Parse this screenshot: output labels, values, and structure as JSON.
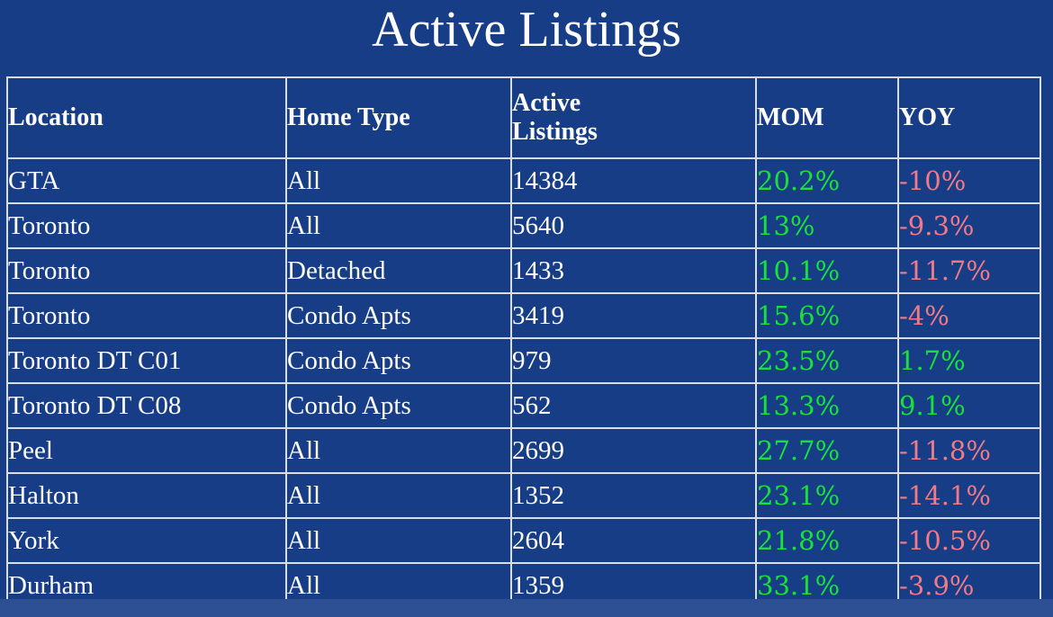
{
  "title": "Active Listings",
  "colors": {
    "background": "#173d87",
    "positive": "#18e23a",
    "negative": "#f07a86",
    "text": "#ffffff"
  },
  "headers": {
    "location": "Location",
    "home_type": "Home Type",
    "active_listings": "Active Listings",
    "mom": "MOM",
    "yoy": "YOY"
  },
  "rows": [
    {
      "location": "GTA",
      "home_type": "All",
      "active": "14384",
      "mom": "20.2%",
      "yoy": "-10%"
    },
    {
      "location": "Toronto",
      "home_type": "All",
      "active": "5640",
      "mom": "13%",
      "yoy": "-9.3%"
    },
    {
      "location": "Toronto",
      "home_type": "Detached",
      "active": "1433",
      "mom": "10.1%",
      "yoy": "-11.7%"
    },
    {
      "location": "Toronto",
      "home_type": "Condo Apts",
      "active": "3419",
      "mom": "15.6%",
      "yoy": "-4%"
    },
    {
      "location": "Toronto DT C01",
      "home_type": "Condo Apts",
      "active": "979",
      "mom": "23.5%",
      "yoy": "1.7%"
    },
    {
      "location": "Toronto DT C08",
      "home_type": "Condo Apts",
      "active": "562",
      "mom": "13.3%",
      "yoy": "9.1%"
    },
    {
      "location": "Peel",
      "home_type": "All",
      "active": "2699",
      "mom": "27.7%",
      "yoy": "-11.8%"
    },
    {
      "location": "Halton",
      "home_type": "All",
      "active": "1352",
      "mom": "23.1%",
      "yoy": "-14.1%"
    },
    {
      "location": "York",
      "home_type": "All",
      "active": "2604",
      "mom": "21.8%",
      "yoy": "-10.5%"
    },
    {
      "location": "Durham",
      "home_type": "All",
      "active": "1359",
      "mom": "33.1%",
      "yoy": "-3.9%"
    }
  ]
}
